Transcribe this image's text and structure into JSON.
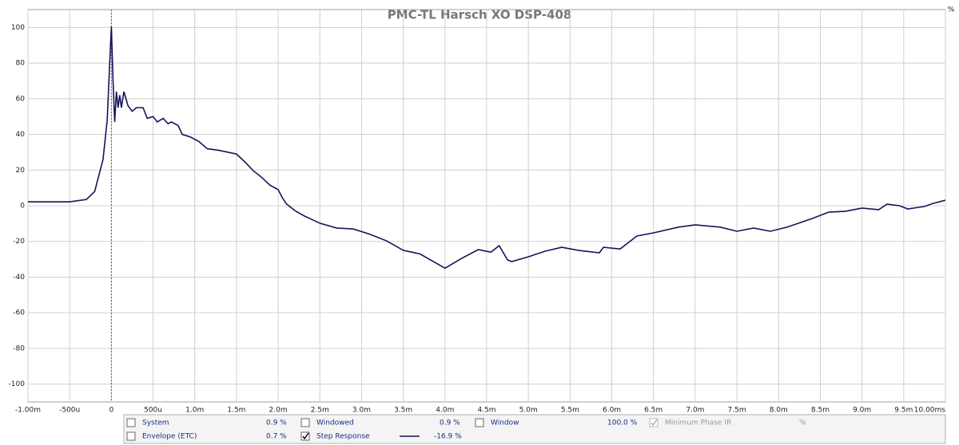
{
  "chart_data": {
    "type": "line",
    "title": "PMC-TL Harsch XO DSP-408",
    "y_unit": "%",
    "x": [
      -1.0,
      -0.5,
      -0.3,
      -0.2,
      -0.1,
      -0.05,
      -0.02,
      0.0,
      0.02,
      0.04,
      0.06,
      0.08,
      0.1,
      0.12,
      0.15,
      0.2,
      0.25,
      0.3,
      0.38,
      0.43,
      0.5,
      0.55,
      0.62,
      0.68,
      0.72,
      0.8,
      0.85,
      0.95,
      1.05,
      1.15,
      1.3,
      1.4,
      1.5,
      1.6,
      1.7,
      1.8,
      1.9,
      2.0,
      2.05,
      2.1,
      2.2,
      2.3,
      2.5,
      2.7,
      2.9,
      3.1,
      3.3,
      3.5,
      3.7,
      3.85,
      4.0,
      4.2,
      4.4,
      4.55,
      4.65,
      4.75,
      4.8,
      5.0,
      5.2,
      5.4,
      5.6,
      5.85,
      5.9,
      6.1,
      6.3,
      6.5,
      6.8,
      7.0,
      7.3,
      7.5,
      7.7,
      7.9,
      8.1,
      8.4,
      8.6,
      8.8,
      9.0,
      9.2,
      9.3,
      9.45,
      9.55,
      9.75,
      9.85,
      10.0
    ],
    "series": [
      {
        "name": "Step Response",
        "color": "#14145a",
        "values": [
          2.2,
          2.2,
          3.5,
          8,
          26,
          48,
          80,
          100.5,
          70,
          47,
          64,
          55,
          62,
          55,
          64,
          56,
          53,
          55,
          55,
          49,
          50,
          47,
          49,
          46,
          47,
          45,
          40,
          38.5,
          36,
          32,
          31,
          30,
          29,
          24.6,
          19.7,
          16,
          11.6,
          9,
          4.5,
          1,
          -2.7,
          -5.4,
          -9.8,
          -12.5,
          -13,
          -16,
          -19.7,
          -25,
          -27,
          -31,
          -35,
          -29.5,
          -24.6,
          -26,
          -22.4,
          -30.4,
          -31.3,
          -28.6,
          -25.5,
          -23.3,
          -25,
          -26.4,
          -23.3,
          -24.2,
          -17,
          -15.2,
          -12,
          -10.7,
          -12,
          -14.3,
          -12.5,
          -14.3,
          -12,
          -7.2,
          -3.6,
          -3.1,
          -1.3,
          -2.2,
          0.9,
          0,
          -1.8,
          -0.4,
          1.3,
          3.1
        ]
      }
    ],
    "xlim": [
      -1.0,
      10.0
    ],
    "xticks": [
      {
        "value": -1.0,
        "label": "-1.00m"
      },
      {
        "value": -0.5,
        "label": "-500u"
      },
      0,
      {
        "value": 0.5,
        "label": "500u"
      },
      {
        "value": 1.0,
        "label": "1.0m"
      },
      {
        "value": 1.5,
        "label": "1.5m"
      },
      {
        "value": 2.0,
        "label": "2.0m"
      },
      {
        "value": 2.5,
        "label": "2.5m"
      },
      {
        "value": 3.0,
        "label": "3.0m"
      },
      {
        "value": 3.5,
        "label": "3.5m"
      },
      {
        "value": 4.0,
        "label": "4.0m"
      },
      {
        "value": 4.5,
        "label": "4.5m"
      },
      {
        "value": 5.0,
        "label": "5.0m"
      },
      {
        "value": 5.5,
        "label": "5.5m"
      },
      {
        "value": 6.0,
        "label": "6.0m"
      },
      {
        "value": 6.5,
        "label": "6.5m"
      },
      {
        "value": 7.0,
        "label": "7.0m"
      },
      {
        "value": 7.5,
        "label": "7.5m"
      },
      {
        "value": 8.0,
        "label": "8.0m"
      },
      {
        "value": 8.5,
        "label": "8.5m"
      },
      {
        "value": 9.0,
        "label": "9.0m"
      },
      {
        "value": 9.5,
        "label": "9.5m"
      },
      {
        "value": 10.0,
        "label": "10.00ms"
      }
    ],
    "ylim": [
      -110,
      110
    ],
    "yticks": [
      -100,
      -80,
      -60,
      -40,
      -20,
      0,
      20,
      40,
      60,
      80,
      100
    ],
    "grid": true,
    "marker_color": "#cc3333"
  },
  "panel": {
    "items": [
      {
        "label": "System",
        "value": "0.9 %",
        "checked": false
      },
      {
        "label": "Windowed",
        "value": "0.9 %",
        "checked": false
      },
      {
        "label": "Window",
        "value": "100.0 %",
        "checked": false
      },
      {
        "label": "Minimum Phase IR",
        "value": "%",
        "checked": true,
        "disabled": true
      },
      {
        "label": "Envelope (ETC)",
        "value": "0.7 %",
        "checked": false
      },
      {
        "label": "Step Response",
        "value": "-16.9 %",
        "checked": true
      }
    ]
  }
}
